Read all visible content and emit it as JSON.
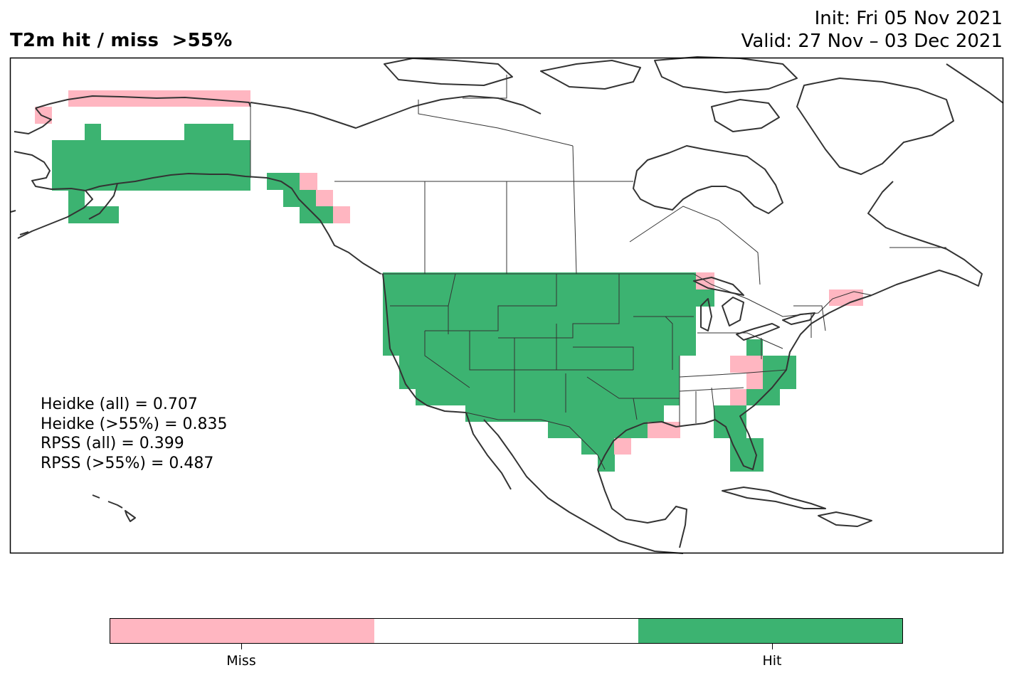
{
  "title": "T2m hit / miss  >55%",
  "init_label": "Init: Fri 05 Nov 2021",
  "valid_label": "Valid: 27 Nov – 03 Dec 2021",
  "scores": [
    "Heidke (all) = 0.707",
    "Heidke (>55%) = 0.835",
    "RPSS (all) = 0.399",
    "RPSS (>55%) = 0.487"
  ],
  "colors": {
    "miss": "#ffb6c1",
    "hit": "#3cb371",
    "neutral": "#ffffff",
    "coast": "#333333"
  },
  "legend": {
    "categories": [
      {
        "label": "Miss",
        "color": "#ffb6c1"
      },
      {
        "label": "",
        "color": "#ffffff"
      },
      {
        "label": "Hit",
        "color": "#3cb371"
      }
    ]
  }
}
